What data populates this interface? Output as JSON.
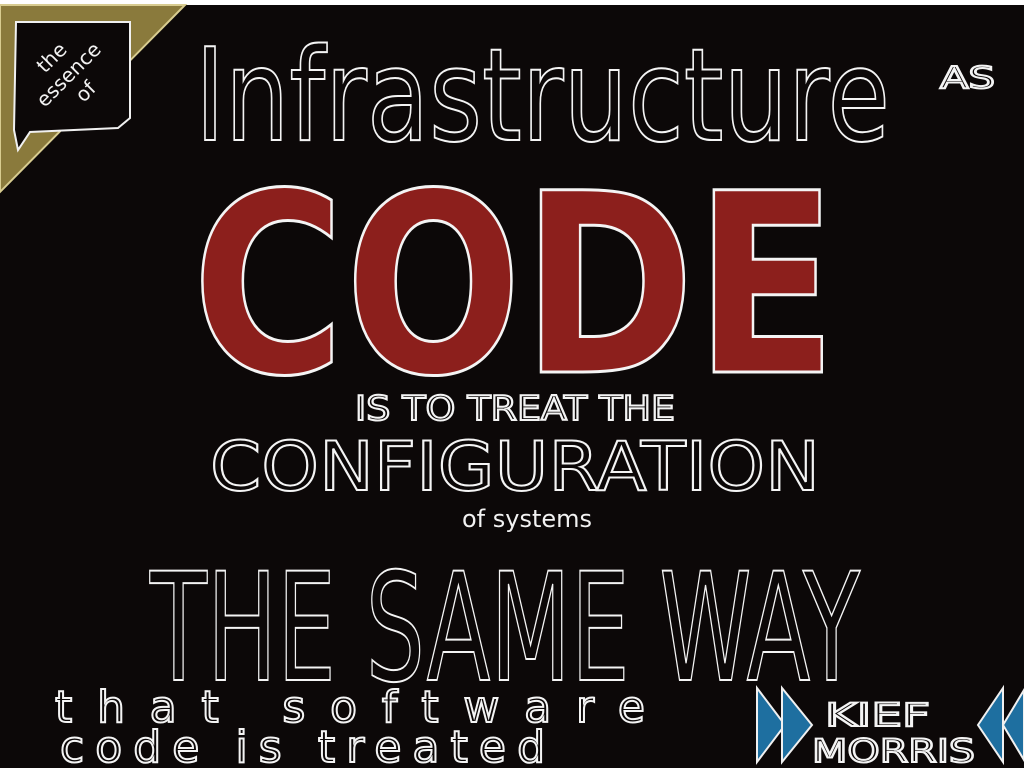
{
  "corner": {
    "lines": [
      "the",
      "essence",
      "of"
    ]
  },
  "title": {
    "main": "Infrastructure",
    "as": "AS",
    "code": "CODE"
  },
  "body": {
    "line1": "IS TO TREAT THE",
    "line2": "CONFIGURATION",
    "line3": "of systems",
    "line4": "THE SAME WAY"
  },
  "footer": {
    "line1": "that software",
    "line2": "code is treated"
  },
  "author": {
    "first": "KIEF",
    "last": "MORRIS"
  }
}
